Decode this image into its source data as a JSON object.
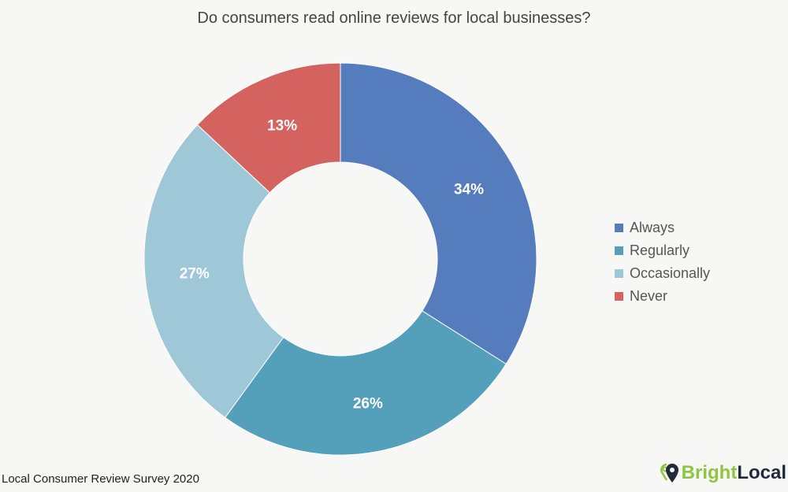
{
  "chart_data": {
    "type": "pie",
    "subtype": "donut",
    "title": "Do consumers read online reviews for local businesses?",
    "categories": [
      "Always",
      "Regularly",
      "Occasionally",
      "Never"
    ],
    "values": [
      34,
      26,
      27,
      13
    ],
    "labels": [
      "34%",
      "26%",
      "27%",
      "13%"
    ],
    "colors": [
      "#557cbd",
      "#549fba",
      "#9ec7d8",
      "#d4625e"
    ],
    "legend_position": "right"
  },
  "source": "Local Consumer Review Survey 2020",
  "logo": {
    "part1": "Bright",
    "part2": "Local"
  }
}
